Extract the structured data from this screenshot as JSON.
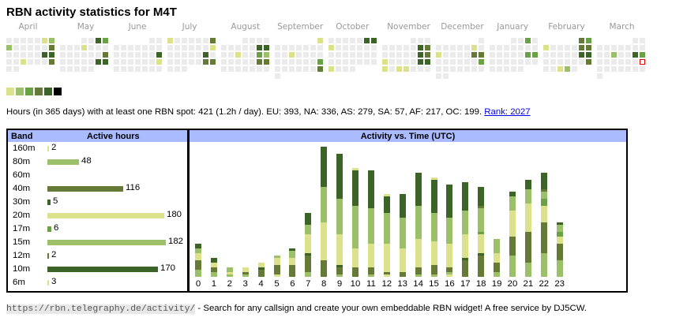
{
  "title": "RBN activity statistics for M4T",
  "colors": {
    "empty": "#ebebeb",
    "levels": [
      "#dce28c",
      "#9cc06a",
      "#6ba146",
      "#667a38",
      "#3c6426",
      "#000000"
    ],
    "today_border": "#dd0000",
    "header_bg": "#aabbff",
    "link": "#0000ee"
  },
  "calendar": {
    "months": [
      {
        "label": "April",
        "rows": [
          "0000012",
          "2000004",
          "0000055",
          "0010004",
          "00....."
        ]
      },
      {
        "label": "May",
        "rows": [
          "...0053",
          "0001000",
          "0000004",
          "0000055",
          "00000.."
        ]
      },
      {
        "label": "June",
        "rows": [
          "......00",
          "0000000",
          "0000005",
          "0000001",
          "0000000"
        ]
      },
      {
        "label": "July",
        "rows": [
          "1000004",
          "0000001",
          "0000050",
          "0000044",
          "000...."
        ]
      },
      {
        "label": "August",
        "rows": [
          "...0000",
          "0000055",
          "0010032",
          "0000044",
          "0000000"
        ]
      },
      {
        "label": "September",
        "rows": [
          "......1",
          "0000000",
          "0010000",
          "0000003",
          "0000004",
          "0......"
        ]
      },
      {
        "label": "October",
        "rows": [
          "0000055",
          "1000000",
          "0000000",
          "0000000",
          "1000..."
        ]
      },
      {
        "label": "November",
        "rows": [
          ".....000",
          "0000054",
          "0000054",
          "1000055",
          "1011000"
        ]
      },
      {
        "label": "December",
        "rows": [
          "......0",
          "0000010",
          "1000044",
          "0000003",
          "0000000",
          "00....."
        ]
      },
      {
        "label": "January",
        "rows": [
          "...0030",
          "0000000",
          "0000033",
          "0000000",
          "00000.."
        ]
      },
      {
        "label": "February",
        "rows": [
          ".....43",
          "1000044",
          "0000055",
          "0000004",
          "00120.."
        ]
      },
      {
        "label": "March",
        "rows": [
          "......00",
          "0000000",
          "0020053",
          "000000X",
          "0000000",
          "0......"
        ]
      }
    ],
    "legend_levels": 6
  },
  "summary": {
    "text": "Hours (in 365 days) with at least one RBN spot: 421 (1.2h / day). EU: 393, NA: 336, AS: 279, SA: 57, AF: 217, OC: 199. ",
    "rank_link": "Rank: 2027"
  },
  "bands": {
    "header_band": "Band",
    "header_hours": "Active hours",
    "max": 182,
    "rows": [
      {
        "band": "160m",
        "hours": 2,
        "color": "#dce28c",
        "label": "2"
      },
      {
        "band": "80m",
        "hours": 48,
        "color": "#9cc06a",
        "label": "48"
      },
      {
        "band": "60m",
        "hours": 0,
        "color": "#6ba146",
        "label": ""
      },
      {
        "band": "40m",
        "hours": 116,
        "color": "#667a38",
        "label": "116"
      },
      {
        "band": "30m",
        "hours": 5,
        "color": "#3c6426",
        "label": "5"
      },
      {
        "band": "20m",
        "hours": 180,
        "color": "#dce28c",
        "label": "180"
      },
      {
        "band": "17m",
        "hours": 6,
        "color": "#6ba146",
        "label": "6"
      },
      {
        "band": "15m",
        "hours": 182,
        "color": "#9cc06a",
        "label": "182"
      },
      {
        "band": "12m",
        "hours": 2,
        "color": "#667a38",
        "label": "2"
      },
      {
        "band": "10m",
        "hours": 170,
        "color": "#3c6426",
        "label": "170"
      },
      {
        "band": "6m",
        "hours": 3,
        "color": "#dce28c",
        "label": "3"
      }
    ]
  },
  "chart_data": {
    "type": "bar",
    "stacked": true,
    "title": "Activity vs. Time (UTC)",
    "xlabel": "",
    "ylabel": "",
    "categories": [
      "0",
      "1",
      "2",
      "3",
      "4",
      "5",
      "6",
      "7",
      "8",
      "9",
      "10",
      "11",
      "12",
      "13",
      "14",
      "15",
      "16",
      "17",
      "18",
      "19",
      "20",
      "21",
      "22",
      "23"
    ],
    "segment_colors": {
      "A": "#9cc06a",
      "B": "#667a38",
      "C": "#dce28c",
      "D": "#3c6426",
      "E": "#6ba146"
    },
    "stacks_bottom_to_top": [
      [
        [
          "A",
          3
        ],
        [
          "B",
          4
        ],
        [
          "C",
          3
        ],
        [
          "A",
          2
        ],
        [
          "D",
          2
        ]
      ],
      [
        [
          "A",
          2
        ],
        [
          "B",
          2
        ],
        [
          "C",
          2
        ],
        [
          "D",
          2
        ]
      ],
      [
        [
          "A",
          1
        ],
        [
          "C",
          1
        ],
        [
          "A",
          2
        ]
      ],
      [
        [
          "A",
          1
        ],
        [
          "B",
          1
        ],
        [
          "C",
          2
        ]
      ],
      [
        [
          "B",
          3
        ],
        [
          "D",
          1
        ],
        [
          "C",
          2
        ]
      ],
      [
        [
          "C",
          1
        ],
        [
          "B",
          4
        ],
        [
          "C",
          3
        ],
        [
          "A",
          1
        ]
      ],
      [
        [
          "B",
          5
        ],
        [
          "C",
          3
        ],
        [
          "A",
          3
        ],
        [
          "D",
          1
        ]
      ],
      [
        [
          "A",
          2
        ],
        [
          "B",
          7
        ],
        [
          "D",
          1
        ],
        [
          "C",
          8
        ],
        [
          "A",
          4
        ],
        [
          "D",
          5
        ]
      ],
      [
        [
          "B",
          7
        ],
        [
          "C",
          16
        ],
        [
          "A",
          15
        ],
        [
          "D",
          17
        ]
      ],
      [
        [
          "A",
          1
        ],
        [
          "B",
          3
        ],
        [
          "D",
          1
        ],
        [
          "C",
          13
        ],
        [
          "A",
          15
        ],
        [
          "D",
          19
        ]
      ],
      [
        [
          "B",
          4
        ],
        [
          "C",
          8
        ],
        [
          "A",
          18
        ],
        [
          "D",
          15
        ],
        [
          "C",
          1
        ]
      ],
      [
        [
          "A",
          1
        ],
        [
          "B",
          3
        ],
        [
          "C",
          10
        ],
        [
          "A",
          15
        ],
        [
          "D",
          16
        ]
      ],
      [
        [
          "C",
          1
        ],
        [
          "B",
          1
        ],
        [
          "C",
          12
        ],
        [
          "A",
          13
        ],
        [
          "D",
          7
        ],
        [
          "C",
          1
        ]
      ],
      [
        [
          "B",
          2
        ],
        [
          "C",
          10
        ],
        [
          "A",
          13
        ],
        [
          "D",
          10
        ]
      ],
      [
        [
          "A",
          1
        ],
        [
          "B",
          3
        ],
        [
          "C",
          12
        ],
        [
          "A",
          14
        ],
        [
          "D",
          14
        ]
      ],
      [
        [
          "A",
          1
        ],
        [
          "B",
          4
        ],
        [
          "C",
          10
        ],
        [
          "A",
          12
        ],
        [
          "D",
          14
        ],
        [
          "C",
          1
        ]
      ],
      [
        [
          "C",
          1
        ],
        [
          "A",
          1
        ],
        [
          "B",
          2
        ],
        [
          "C",
          10
        ],
        [
          "A",
          11
        ],
        [
          "D",
          14
        ]
      ],
      [
        [
          "B",
          7
        ],
        [
          "D",
          1
        ],
        [
          "C",
          10
        ],
        [
          "A",
          10
        ],
        [
          "D",
          12
        ]
      ],
      [
        [
          "B",
          9
        ],
        [
          "D",
          1
        ],
        [
          "C",
          8
        ],
        [
          "E",
          1
        ],
        [
          "A",
          10
        ],
        [
          "B",
          1
        ],
        [
          "D",
          8
        ]
      ],
      [
        [
          "A",
          2
        ],
        [
          "B",
          4
        ],
        [
          "C",
          4
        ],
        [
          "A",
          6
        ]
      ],
      [
        [
          "A",
          9
        ],
        [
          "B",
          8
        ],
        [
          "C",
          11
        ],
        [
          "A",
          6
        ],
        [
          "D",
          2
        ]
      ],
      [
        [
          "A",
          6
        ],
        [
          "B",
          13
        ],
        [
          "C",
          12
        ],
        [
          "A",
          6
        ],
        [
          "D",
          4
        ]
      ],
      [
        [
          "A",
          10
        ],
        [
          "B",
          13
        ],
        [
          "C",
          7
        ],
        [
          "E",
          3
        ],
        [
          "A",
          3
        ],
        [
          "B",
          1
        ],
        [
          "D",
          7
        ]
      ],
      [
        [
          "A",
          7
        ],
        [
          "B",
          7
        ],
        [
          "C",
          3
        ],
        [
          "E",
          2
        ],
        [
          "A",
          3
        ],
        [
          "D",
          1
        ]
      ]
    ]
  },
  "footer": {
    "url": "https://rbn.telegraphy.de/activity/",
    "text": " - Search for any callsign and create your own embeddable RBN widget! A free service by DJ5CW."
  }
}
